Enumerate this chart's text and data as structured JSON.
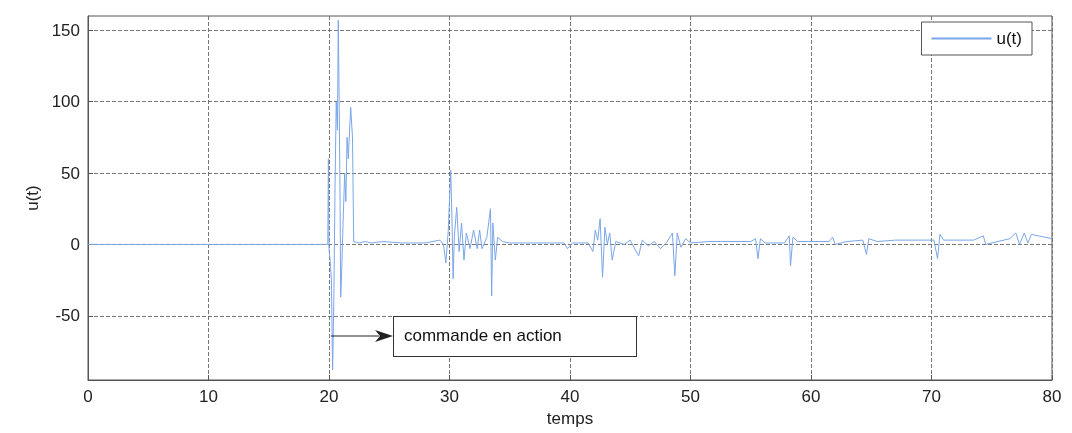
{
  "chart_data": {
    "type": "line",
    "xlabel": "temps",
    "ylabel": "u(t)",
    "xlim": [
      0,
      80
    ],
    "xticks": [
      0,
      10,
      20,
      30,
      40,
      50,
      60,
      70,
      80
    ],
    "ylim": [
      -95,
      160
    ],
    "yticks": [
      -50,
      0,
      50,
      100,
      150
    ],
    "grid": true,
    "legend": "top right",
    "line_style": "solid",
    "marker": "none",
    "annotations": [
      "commande en action"
    ],
    "series": [
      {
        "name": "u(t)",
        "color": "#7aa6e8",
        "x": [
          0,
          19.9,
          19.95,
          20.0,
          20.1,
          20.2,
          20.3,
          20.4,
          20.5,
          20.6,
          20.7,
          20.77,
          20.85,
          20.92,
          20.97,
          21.05,
          21.15,
          21.3,
          21.4,
          21.5,
          21.6,
          21.8,
          21.95,
          22.05,
          22.5,
          23.0,
          23.5,
          24.5,
          26,
          28,
          29.2,
          29.5,
          29.7,
          29.9,
          30.1,
          30.2,
          30.3,
          30.4,
          30.6,
          30.8,
          31.0,
          31.2,
          31.4,
          31.7,
          32.0,
          32.3,
          32.5,
          32.7,
          33.1,
          33.4,
          33.5,
          33.6,
          33.8,
          34.0,
          34.4,
          35,
          37,
          39.5,
          39.8,
          40.2,
          41.5,
          41.9,
          42.1,
          42.3,
          42.5,
          42.7,
          42.9,
          43.1,
          43.3,
          43.5,
          43.8,
          44.5,
          45.0,
          45.3,
          45.7,
          46.0,
          46.5,
          47.0,
          47.5,
          48.0,
          48.5,
          48.7,
          48.9,
          49.2,
          49.6,
          50.0,
          51.5,
          52.5,
          55.0,
          55.4,
          55.6,
          55.8,
          56.2,
          57.8,
          58.2,
          58.3,
          58.5,
          58.9,
          60,
          61.5,
          61.8,
          62.0,
          63,
          64.3,
          64.6,
          64.8,
          65.5,
          67,
          70.2,
          70.5,
          70.7,
          71.0,
          73.5,
          74.3,
          74.5,
          76.5,
          77.0,
          77.3,
          77.7,
          78.0,
          78.3,
          80
        ],
        "values": [
          0,
          0,
          60,
          -3,
          -12,
          -25,
          -88,
          -40,
          40,
          100,
          80,
          157,
          95,
          30,
          -37,
          -20,
          10,
          50,
          30,
          75,
          60,
          96,
          75,
          2,
          1,
          2,
          1,
          2,
          1,
          1,
          3,
          0,
          -13,
          10,
          52,
          20,
          -24,
          5,
          26,
          -5,
          15,
          -11,
          8,
          -3,
          10,
          -3,
          10,
          -3,
          5,
          25,
          -36,
          15,
          -11,
          5,
          2,
          1,
          1,
          1,
          -3,
          1,
          1,
          -5,
          10,
          3,
          18,
          -23,
          12,
          0,
          8,
          -11,
          2,
          0,
          3,
          -2,
          -8,
          3,
          -1,
          2,
          -3,
          1,
          8,
          -22,
          8,
          -2,
          4,
          1,
          2,
          2,
          2,
          4,
          -10,
          4,
          1,
          1,
          6,
          -15,
          5,
          2,
          2,
          2,
          5,
          0,
          2,
          3,
          -7,
          4,
          2,
          3,
          3,
          -10,
          7,
          3,
          3,
          6,
          0,
          4,
          8,
          0,
          8,
          1,
          7,
          4
        ]
      }
    ]
  }
}
